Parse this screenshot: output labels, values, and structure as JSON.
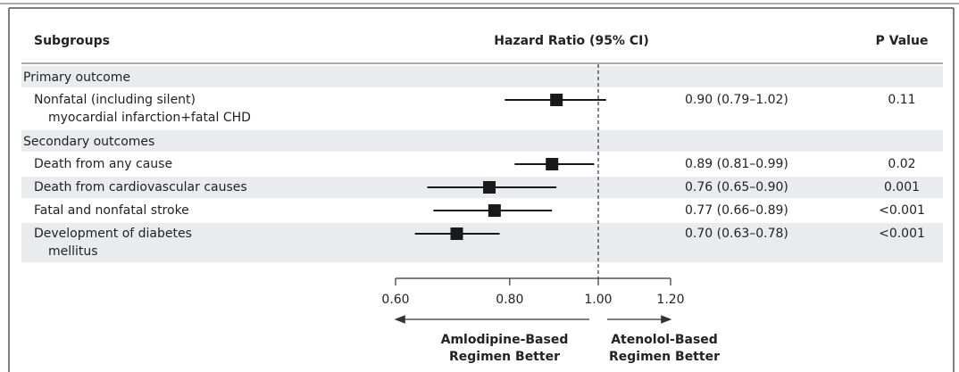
{
  "chart_data": {
    "type": "forest",
    "headers": {
      "subgroup": "Subgroups",
      "ratio": "Hazard Ratio (95% CI)",
      "p": "P Value"
    },
    "xlim": [
      0.6,
      1.2
    ],
    "log_scale": true,
    "reference": 1.0,
    "xticks": [
      {
        "value": 0.6,
        "label": "0.60"
      },
      {
        "value": 0.8,
        "label": "0.80"
      },
      {
        "value": 1.0,
        "label": "1.00"
      },
      {
        "value": 1.2,
        "label": "1.20"
      }
    ],
    "color": "#1a1a1a",
    "shade": "#e9ebee",
    "groups": [
      {
        "name": "Primary outcome",
        "items": [
          {
            "label": [
              "Nonfatal (including silent)",
              "myocardial infarction+fatal CHD"
            ],
            "value": 0.9,
            "lower": 0.79,
            "upper": 1.02,
            "value_label": "0.90 (0.79–1.02)",
            "p": "0.11"
          }
        ]
      },
      {
        "name": "Secondary outcomes",
        "items": [
          {
            "label": [
              "Death from any cause"
            ],
            "value": 0.89,
            "lower": 0.81,
            "upper": 0.99,
            "value_label": "0.89 (0.81–0.99)",
            "p": "0.02"
          },
          {
            "label": [
              "Death from cardiovascular causes"
            ],
            "value": 0.76,
            "lower": 0.65,
            "upper": 0.9,
            "value_label": "0.76 (0.65–0.90)",
            "p": "0.001"
          },
          {
            "label": [
              "Fatal and nonfatal stroke"
            ],
            "value": 0.77,
            "lower": 0.66,
            "upper": 0.89,
            "value_label": "0.77 (0.66–0.89)",
            "p": "<0.001"
          },
          {
            "label": [
              "Development of diabetes",
              "mellitus"
            ],
            "value": 0.7,
            "lower": 0.63,
            "upper": 0.78,
            "value_label": "0.70 (0.63–0.78)",
            "p": "<0.001"
          }
        ]
      }
    ],
    "favors": {
      "left": [
        "Amlodipine-Based",
        "Regimen Better"
      ],
      "right": [
        "Atenolol-Based",
        "Regimen Better"
      ]
    }
  }
}
